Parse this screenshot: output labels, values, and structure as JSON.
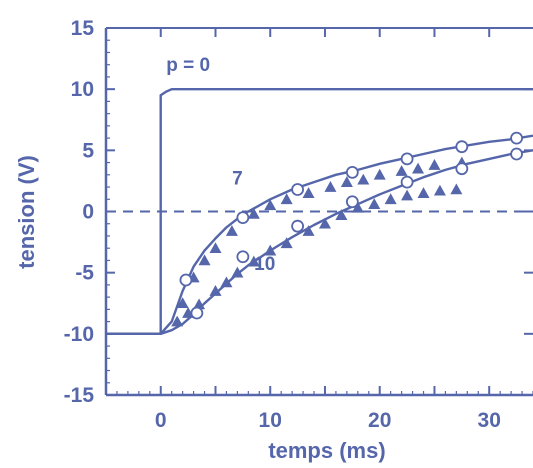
{
  "chart_data": {
    "type": "line",
    "title": "",
    "xlabel": "temps  (ms)",
    "ylabel": "tension  (V)",
    "xlim": [
      -5,
      34
    ],
    "ylim": [
      -15,
      15
    ],
    "xticks": [
      0,
      10,
      20,
      30
    ],
    "yticks": [
      15,
      10,
      5,
      0,
      -5,
      -10,
      -15
    ],
    "grid": false,
    "zero_line": {
      "y": 0,
      "style": "dashed"
    },
    "color": "#5566aa",
    "series": [
      {
        "label": "p = 0",
        "x": [
          -5,
          0,
          0,
          0.5,
          1,
          34
        ],
        "y": [
          -10,
          -10,
          9.5,
          9.8,
          10,
          10
        ]
      },
      {
        "label": "7",
        "x": [
          -5,
          0,
          1,
          2,
          3,
          4,
          5,
          6,
          7,
          8,
          9,
          10,
          12,
          14,
          16,
          18,
          20,
          22,
          24,
          26,
          28,
          30,
          32,
          34
        ],
        "y": [
          -10,
          -10,
          -9,
          -6.5,
          -4.5,
          -3.2,
          -2.2,
          -1.3,
          -0.6,
          0,
          0.5,
          1,
          1.8,
          2.4,
          3,
          3.4,
          3.9,
          4.3,
          4.7,
          5.1,
          5.4,
          5.7,
          5.9,
          6.2
        ]
      },
      {
        "label": "10",
        "x": [
          -5,
          0,
          1,
          2,
          3,
          4,
          5,
          6,
          7,
          8,
          9,
          10,
          12,
          14,
          16,
          18,
          20,
          22,
          24,
          26,
          28,
          30,
          32,
          34
        ],
        "y": [
          -10,
          -10,
          -9.7,
          -9.2,
          -8.4,
          -7.5,
          -6.7,
          -5.9,
          -5.1,
          -4.4,
          -3.8,
          -3.2,
          -2.1,
          -1.1,
          -0.2,
          0.6,
          1.4,
          2.1,
          2.8,
          3.4,
          3.9,
          4.3,
          4.7,
          5
        ]
      }
    ],
    "open_circles": [
      {
        "curve": "7",
        "x": [
          2.3,
          7.5,
          12.5,
          17.5,
          22.5,
          27.5,
          32.5
        ],
        "y": [
          -5.6,
          -0.5,
          1.8,
          3.2,
          4.3,
          5.3,
          6.0
        ]
      },
      {
        "curve": "10",
        "x": [
          3.3,
          7.5,
          12.5,
          17.5,
          22.5,
          27.5,
          32.5
        ],
        "y": [
          -8.3,
          -3.7,
          -1.2,
          0.8,
          2.4,
          3.5,
          4.7
        ]
      }
    ],
    "triangles": [
      {
        "curve": "7",
        "x": [
          2.0,
          3.0,
          4.0,
          5.0,
          6.5,
          8.5,
          10.0,
          11.5,
          13.5,
          15.5,
          17.0,
          18.5,
          20.0,
          22.0,
          23.5,
          25.0,
          27.5
        ],
        "y": [
          -7.5,
          -5.4,
          -4.0,
          -3.0,
          -1.6,
          -0.2,
          0.5,
          1.0,
          1.5,
          2.0,
          2.4,
          2.6,
          3.0,
          3.3,
          3.5,
          3.8,
          4.0
        ]
      },
      {
        "curve": "10",
        "x": [
          1.5,
          2.5,
          3.5,
          5.0,
          6.0,
          7.0,
          8.5,
          10.0,
          11.5,
          13.5,
          15.0,
          16.5,
          18.0,
          19.5,
          21.0,
          22.5,
          24.0,
          25.5,
          27.0
        ],
        "y": [
          -9.0,
          -8.3,
          -7.6,
          -6.5,
          -5.8,
          -5.0,
          -4.1,
          -3.2,
          -2.6,
          -1.6,
          -1.0,
          -0.3,
          0.3,
          0.6,
          1.0,
          1.3,
          1.5,
          1.7,
          1.8
        ]
      }
    ],
    "annotations": [
      {
        "text": "p = 0",
        "x": 2.5,
        "y": 11.5
      },
      {
        "text": "7",
        "x": 7,
        "y": 2.2
      },
      {
        "text": "10",
        "x": 9.5,
        "y": -4.8
      }
    ]
  }
}
